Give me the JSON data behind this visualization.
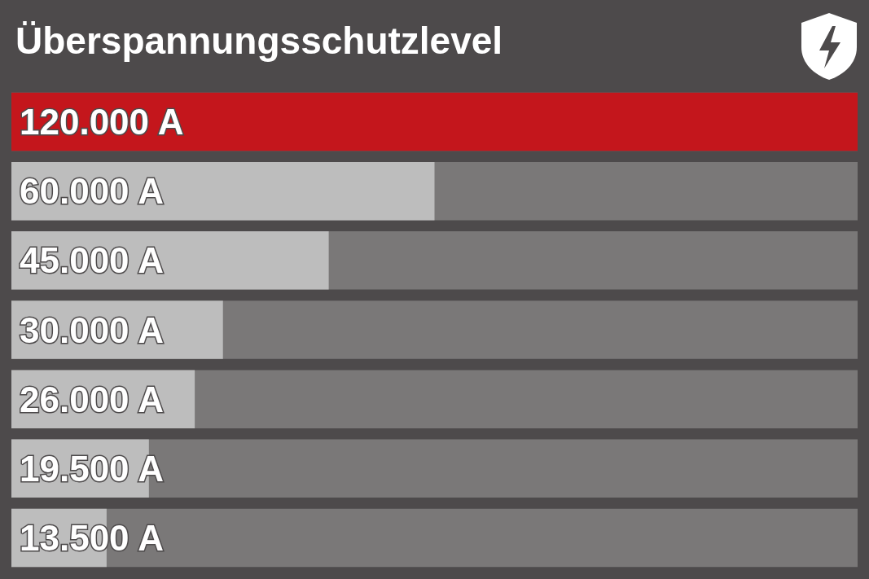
{
  "chart_data": {
    "type": "bar",
    "orientation": "horizontal",
    "title": "Überspannungsschutzlevel",
    "categories": [
      null,
      null,
      null,
      null,
      null,
      null,
      null
    ],
    "values": [
      120000,
      60000,
      45000,
      30000,
      26000,
      19500,
      13500
    ],
    "value_labels": [
      "120.000 A",
      "60.000 A",
      "45.000 A",
      "30.000 A",
      "26.000 A",
      "19.500 A",
      "13.500 A"
    ],
    "colors": [
      "#c4161c",
      "#bdbdbd",
      "#bdbdbd",
      "#bdbdbd",
      "#bdbdbd",
      "#bdbdbd",
      "#bdbdbd"
    ],
    "xlim": [
      0,
      120000
    ],
    "tick_labels": false
  }
}
